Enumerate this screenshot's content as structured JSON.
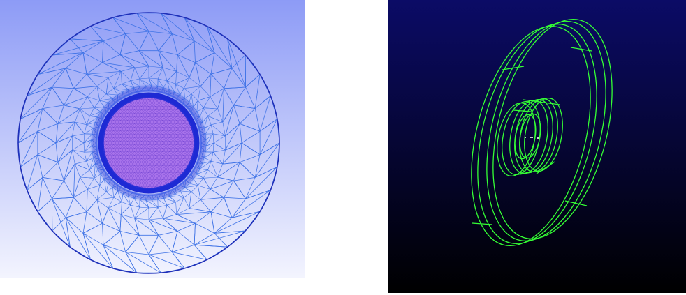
{
  "mesh_view": {
    "view_name": "mesh-view",
    "background_top": "#8d9bf6",
    "background_bottom": "#f3f4fe",
    "mesh_line_color": "#3f73e6",
    "boundary_color": "#1f2fb8",
    "inner_fill": "#a36ce8",
    "inner_edge": "#1b2fd0"
  },
  "cad_view": {
    "view_name": "wireframe-view",
    "background_top": "#0b0b66",
    "background_bottom": "#000000",
    "wire_color": "#35ff35",
    "marker_color": "#c8d0d0"
  }
}
